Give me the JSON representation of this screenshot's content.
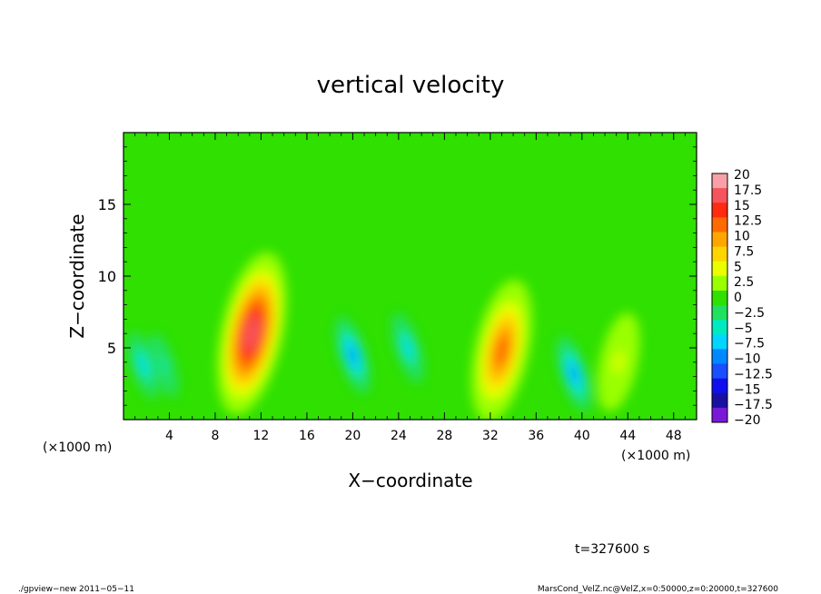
{
  "chart_data": {
    "type": "heatmap",
    "title": "vertical velocity",
    "xlabel": "X−coordinate",
    "ylabel": "Z−coordinate",
    "x_unit_label": "(×1000 m)",
    "y_unit_label": "(×1000 m)",
    "xlim": [
      0,
      50
    ],
    "ylim": [
      0,
      20
    ],
    "x_ticks": [
      4,
      8,
      12,
      16,
      20,
      24,
      28,
      32,
      36,
      40,
      44,
      48
    ],
    "x_tick_labels": [
      "4",
      "8",
      "12",
      "16",
      "20",
      "24",
      "28",
      "32",
      "36",
      "40",
      "44",
      "48"
    ],
    "y_ticks": [
      5,
      10,
      15
    ],
    "y_tick_labels": [
      "5",
      "10",
      "15"
    ],
    "colorbar": {
      "levels": [
        20,
        17.5,
        15,
        12.5,
        10,
        7.5,
        5,
        2.5,
        0,
        -2.5,
        -5,
        -7.5,
        -10,
        -12.5,
        -15,
        -17.5,
        -20
      ],
      "labels": [
        "20",
        "17.5",
        "15",
        "12.5",
        "10",
        "7.5",
        "5",
        "2.5",
        "0",
        "−2.5",
        "−5",
        "−7.5",
        "−10",
        "−12.5",
        "−15",
        "−17.5",
        "−20"
      ],
      "colors": [
        "#f7a0a8",
        "#f5545c",
        "#ff2a10",
        "#ff6a00",
        "#ffa500",
        "#ffd500",
        "#e9ff00",
        "#9aff00",
        "#2fe000",
        "#20e060",
        "#00eac0",
        "#00d6ff",
        "#0088ff",
        "#1a4fff",
        "#1010ee",
        "#1810a0",
        "#7a18d8"
      ]
    },
    "features": [
      {
        "kind": "updraft",
        "x": 11.2,
        "z": 6.0,
        "peak_w": 16.5
      },
      {
        "kind": "updraft",
        "x": 33.0,
        "z": 4.8,
        "peak_w": 12.5
      },
      {
        "kind": "updraft",
        "x": 43.2,
        "z": 4.0,
        "peak_w": 4.0
      },
      {
        "kind": "downdraft",
        "x": 20.0,
        "z": 4.5,
        "peak_w": -10.5
      },
      {
        "kind": "downdraft",
        "x": 24.8,
        "z": 5.0,
        "peak_w": -8.0
      },
      {
        "kind": "downdraft",
        "x": 39.3,
        "z": 3.2,
        "peak_w": -10.0
      },
      {
        "kind": "downdraft",
        "x": 1.7,
        "z": 3.8,
        "peak_w": -7.0
      },
      {
        "kind": "downdraft",
        "x": 3.5,
        "z": 3.8,
        "peak_w": -6.0
      }
    ]
  },
  "time_label": "t=327600 s",
  "footer": {
    "left": "./gpview−new  2011−05−11",
    "right": "MarsCond_VelZ.nc@VelZ,x=0:50000,z=0:20000,t=327600"
  }
}
